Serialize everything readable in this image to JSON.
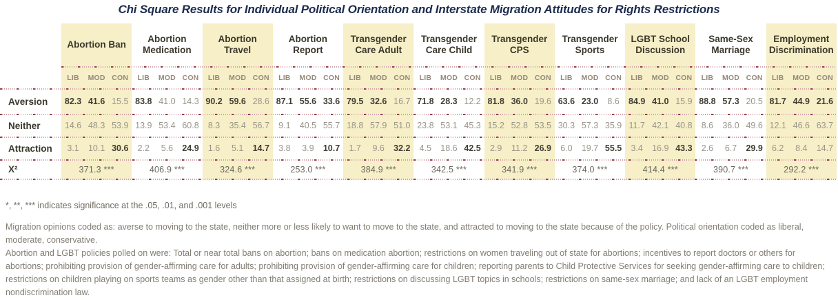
{
  "chart_data": {
    "type": "table",
    "title": "Chi Square Results for Individual Political Orientation and Interstate Migration Attitudes for Rights Restrictions",
    "row_labels": [
      "Aversion",
      "Neither",
      "Attraction",
      "X²"
    ],
    "sub_columns": [
      "LIB",
      "MOD",
      "CON"
    ],
    "highlight_color": "#f6efc7",
    "groups": [
      {
        "label": "Abortion Ban",
        "highlighted": true,
        "aversion": [
          "82.3",
          "41.6",
          "15.5"
        ],
        "aversion_bold": [
          true,
          true,
          false
        ],
        "neither": [
          "14.6",
          "48.3",
          "53.9"
        ],
        "neither_bold": [
          false,
          false,
          false
        ],
        "attraction": [
          "3.1",
          "10.1",
          "30.6"
        ],
        "attraction_bold": [
          false,
          false,
          true
        ],
        "chi_square": "371.3 ***"
      },
      {
        "label": "Abortion Medication",
        "highlighted": false,
        "aversion": [
          "83.8",
          "41.0",
          "14.3"
        ],
        "aversion_bold": [
          true,
          false,
          false
        ],
        "neither": [
          "13.9",
          "53.4",
          "60.8"
        ],
        "neither_bold": [
          false,
          false,
          false
        ],
        "attraction": [
          "2.2",
          "5.6",
          "24.9"
        ],
        "attraction_bold": [
          false,
          false,
          true
        ],
        "chi_square": "406.9 ***"
      },
      {
        "label": "Abortion Travel",
        "highlighted": true,
        "aversion": [
          "90.2",
          "59.6",
          "28.6"
        ],
        "aversion_bold": [
          true,
          true,
          false
        ],
        "neither": [
          "8.3",
          "35.4",
          "56.7"
        ],
        "neither_bold": [
          false,
          false,
          false
        ],
        "attraction": [
          "1.6",
          "5.1",
          "14.7"
        ],
        "attraction_bold": [
          false,
          false,
          true
        ],
        "chi_square": "324.6 ***"
      },
      {
        "label": "Abortion Report",
        "highlighted": false,
        "aversion": [
          "87.1",
          "55.6",
          "33.6"
        ],
        "aversion_bold": [
          true,
          true,
          true
        ],
        "neither": [
          "9.1",
          "40.5",
          "55.7"
        ],
        "neither_bold": [
          false,
          false,
          false
        ],
        "attraction": [
          "3.8",
          "3.9",
          "10.7"
        ],
        "attraction_bold": [
          false,
          false,
          true
        ],
        "chi_square": "253.0 ***"
      },
      {
        "label": "Transgender Care Adult",
        "highlighted": true,
        "aversion": [
          "79.5",
          "32.6",
          "16.7"
        ],
        "aversion_bold": [
          true,
          true,
          false
        ],
        "neither": [
          "18.8",
          "57.9",
          "51.0"
        ],
        "neither_bold": [
          false,
          false,
          false
        ],
        "attraction": [
          "1.7",
          "9.6",
          "32.2"
        ],
        "attraction_bold": [
          false,
          false,
          true
        ],
        "chi_square": "384.9 ***"
      },
      {
        "label": "Transgender Care Child",
        "highlighted": false,
        "aversion": [
          "71.8",
          "28.3",
          "12.2"
        ],
        "aversion_bold": [
          true,
          true,
          false
        ],
        "neither": [
          "23.8",
          "53.1",
          "45.3"
        ],
        "neither_bold": [
          false,
          false,
          false
        ],
        "attraction": [
          "4.5",
          "18.6",
          "42.5"
        ],
        "attraction_bold": [
          false,
          false,
          true
        ],
        "chi_square": "342.5 ***"
      },
      {
        "label": "Transgender CPS",
        "highlighted": true,
        "aversion": [
          "81.8",
          "36.0",
          "19.6"
        ],
        "aversion_bold": [
          true,
          true,
          false
        ],
        "neither": [
          "15.2",
          "52.8",
          "53.5"
        ],
        "neither_bold": [
          false,
          false,
          false
        ],
        "attraction": [
          "2.9",
          "11.2",
          "26.9"
        ],
        "attraction_bold": [
          false,
          false,
          true
        ],
        "chi_square": "341.9 ***"
      },
      {
        "label": "Transgender Sports",
        "highlighted": false,
        "aversion": [
          "63.6",
          "23.0",
          "8.6"
        ],
        "aversion_bold": [
          true,
          true,
          false
        ],
        "neither": [
          "30.3",
          "57.3",
          "35.9"
        ],
        "neither_bold": [
          false,
          false,
          false
        ],
        "attraction": [
          "6.0",
          "19.7",
          "55.5"
        ],
        "attraction_bold": [
          false,
          false,
          true
        ],
        "chi_square": "374.0 ***"
      },
      {
        "label": "LGBT School Discussion",
        "highlighted": true,
        "aversion": [
          "84.9",
          "41.0",
          "15.9"
        ],
        "aversion_bold": [
          true,
          true,
          false
        ],
        "neither": [
          "11.7",
          "42.1",
          "40.8"
        ],
        "neither_bold": [
          false,
          false,
          false
        ],
        "attraction": [
          "3.4",
          "16.9",
          "43.3"
        ],
        "attraction_bold": [
          false,
          false,
          true
        ],
        "chi_square": "414.4 ***"
      },
      {
        "label": "Same-Sex Marriage",
        "highlighted": false,
        "aversion": [
          "88.8",
          "57.3",
          "20.5"
        ],
        "aversion_bold": [
          true,
          true,
          false
        ],
        "neither": [
          "8.6",
          "36.0",
          "49.6"
        ],
        "neither_bold": [
          false,
          false,
          false
        ],
        "attraction": [
          "2.6",
          "6.7",
          "29.9"
        ],
        "attraction_bold": [
          false,
          false,
          true
        ],
        "chi_square": "390.7 ***"
      },
      {
        "label": "Employment Discrimination",
        "highlighted": true,
        "aversion": [
          "81.7",
          "44.9",
          "21.6"
        ],
        "aversion_bold": [
          true,
          true,
          true
        ],
        "neither": [
          "12.1",
          "46.6",
          "63.7"
        ],
        "neither_bold": [
          false,
          false,
          false
        ],
        "attraction": [
          "6.2",
          "8.4",
          "14.7"
        ],
        "attraction_bold": [
          false,
          false,
          false
        ],
        "chi_square": "292.2 ***"
      }
    ]
  },
  "footnotes": {
    "significance": "*, **, *** indicates significance at the .05, .01, and .001 levels",
    "migration_coding": "Migration opinions coded as: averse to moving to the state, neither more or less likely to want to move to the state, and attracted to moving to the state because of the policy. Political orientation coded as liberal, moderate, conservative.",
    "policies_polled": "Abortion and LGBT policies polled on were: Total or near total bans on abortion; bans on medication abortion; restrictions on women traveling out of state for abortions; incentives to report doctors or others for abortions; prohibiting provision of gender-affirming care for adults; prohibiting provision of gender-affirming care for children; reporting parents to Child Protective Services for seeking gender-affirming care to children; restrictions on children playing on sports teams as gender other than that assigned at birth; restrictions on discussing LGBT topics in schools; restrictions on same-sex marriage; and lack of an LGBT employment nondiscrimination law."
  }
}
